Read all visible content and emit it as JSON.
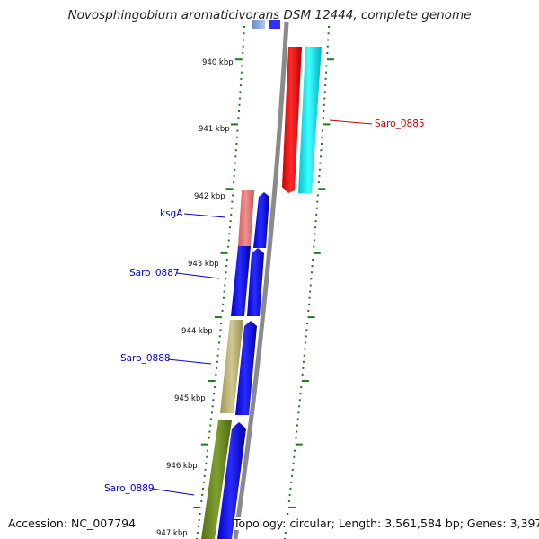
{
  "title": "Novosphingobium aromaticivorans DSM 12444, complete genome",
  "footer": {
    "accession": "Accession: NC_007794",
    "stats": "Topology: circular; Length: 3,561,584 bp; Genes: 3,397"
  },
  "kbp_labels": [
    "940 kbp",
    "941 kbp",
    "942 kbp",
    "943 kbp",
    "944 kbp",
    "945 kbp",
    "946 kbp",
    "947 kbp"
  ],
  "gene_labels": [
    "Saro_0885",
    "ksgA",
    "Saro_0887",
    "Saro_0888",
    "Saro_0889"
  ],
  "colors": {
    "backbone": "#8a8a8a",
    "blue": "#0000ee",
    "red": "#ff0000",
    "cyan": "#00e5ee",
    "pink": "#e07878",
    "khaki": "#b8b070",
    "olive": "#6b8e23",
    "tick_green": "#1e7a1e",
    "label_blue": "#0000cc",
    "label_red": "#cc0000"
  }
}
